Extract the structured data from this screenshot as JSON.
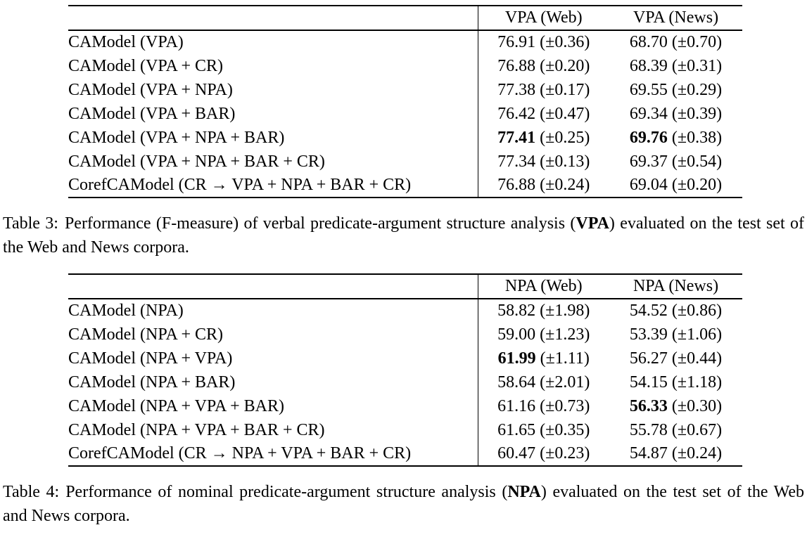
{
  "document": {
    "background": "#ffffff",
    "text_color": "#000000",
    "rule_color": "#000000",
    "tables": [
      {
        "name": "vpa-results",
        "columns": {
          "model": "",
          "web": "VPA (Web)",
          "news": "VPA (News)"
        },
        "rows": [
          {
            "model": "CAModel (VPA)",
            "web": {
              "score": "76.91",
              "std": "(±0.36)",
              "bold": false
            },
            "news": {
              "score": "68.70",
              "std": "(±0.70)",
              "bold": false
            }
          },
          {
            "model": "CAModel (VPA + CR)",
            "web": {
              "score": "76.88",
              "std": "(±0.20)",
              "bold": false
            },
            "news": {
              "score": "68.39",
              "std": "(±0.31)",
              "bold": false
            }
          },
          {
            "model": "CAModel (VPA + NPA)",
            "web": {
              "score": "77.38",
              "std": "(±0.17)",
              "bold": false
            },
            "news": {
              "score": "69.55",
              "std": "(±0.29)",
              "bold": false
            }
          },
          {
            "model": "CAModel (VPA + BAR)",
            "web": {
              "score": "76.42",
              "std": "(±0.47)",
              "bold": false
            },
            "news": {
              "score": "69.34",
              "std": "(±0.39)",
              "bold": false
            }
          },
          {
            "model": "CAModel (VPA + NPA + BAR)",
            "web": {
              "score": "77.41",
              "std": "(±0.25)",
              "bold": true
            },
            "news": {
              "score": "69.76",
              "std": "(±0.38)",
              "bold": true
            }
          },
          {
            "model": "CAModel (VPA + NPA + BAR + CR)",
            "web": {
              "score": "77.34",
              "std": "(±0.13)",
              "bold": false
            },
            "news": {
              "score": "69.37",
              "std": "(±0.54)",
              "bold": false
            }
          },
          {
            "model": "CorefCAModel (CR → VPA + NPA + BAR + CR)",
            "web": {
              "score": "76.88",
              "std": "(±0.24)",
              "bold": false
            },
            "news": {
              "score": "69.04",
              "std": "(±0.20)",
              "bold": false
            }
          }
        ],
        "caption": {
          "label": "Table 3:",
          "prefix": "Performance (F-measure) of verbal predicate-argument structure analysis (",
          "bold": "VPA",
          "suffix": ") evaluated on the test set of the Web and News corpora."
        }
      },
      {
        "name": "npa-results",
        "columns": {
          "model": "",
          "web": "NPA (Web)",
          "news": "NPA (News)"
        },
        "rows": [
          {
            "model": "CAModel (NPA)",
            "web": {
              "score": "58.82",
              "std": "(±1.98)",
              "bold": false
            },
            "news": {
              "score": "54.52",
              "std": "(±0.86)",
              "bold": false
            }
          },
          {
            "model": "CAModel (NPA + CR)",
            "web": {
              "score": "59.00",
              "std": "(±1.23)",
              "bold": false
            },
            "news": {
              "score": "53.39",
              "std": "(±1.06)",
              "bold": false
            }
          },
          {
            "model": "CAModel (NPA + VPA)",
            "web": {
              "score": "61.99",
              "std": "(±1.11)",
              "bold": true
            },
            "news": {
              "score": "56.27",
              "std": "(±0.44)",
              "bold": false
            }
          },
          {
            "model": "CAModel (NPA + BAR)",
            "web": {
              "score": "58.64",
              "std": "(±2.01)",
              "bold": false
            },
            "news": {
              "score": "54.15",
              "std": "(±1.18)",
              "bold": false
            }
          },
          {
            "model": "CAModel (NPA + VPA + BAR)",
            "web": {
              "score": "61.16",
              "std": "(±0.73)",
              "bold": false
            },
            "news": {
              "score": "56.33",
              "std": "(±0.30)",
              "bold": true
            }
          },
          {
            "model": "CAModel (NPA + VPA + BAR + CR)",
            "web": {
              "score": "61.65",
              "std": "(±0.35)",
              "bold": false
            },
            "news": {
              "score": "55.78",
              "std": "(±0.67)",
              "bold": false
            }
          },
          {
            "model": "CorefCAModel (CR → NPA + VPA + BAR + CR)",
            "web": {
              "score": "60.47",
              "std": "(±0.23)",
              "bold": false
            },
            "news": {
              "score": "54.87",
              "std": "(±0.24)",
              "bold": false
            }
          }
        ],
        "caption": {
          "label": "Table 4:",
          "prefix": "Performance of nominal predicate-argument structure analysis (",
          "bold": "NPA",
          "suffix": ") evaluated on the test set of the Web and News corpora."
        }
      }
    ]
  }
}
